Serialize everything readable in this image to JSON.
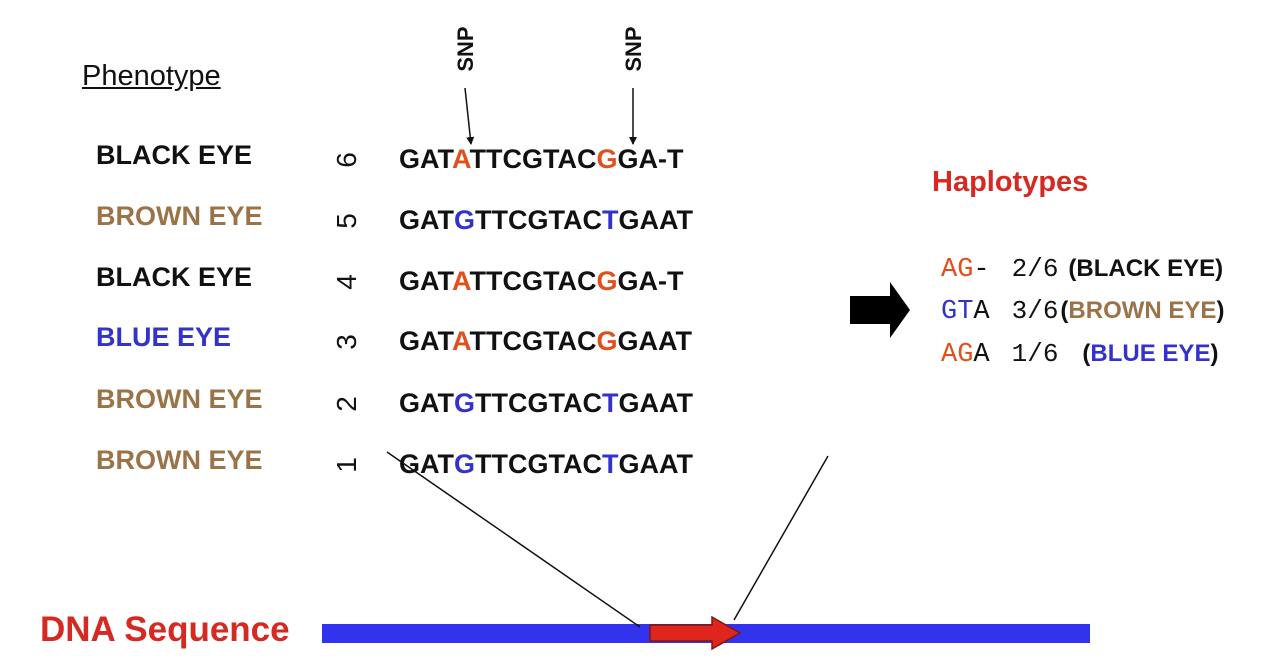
{
  "colors": {
    "black": "#111111",
    "brown": "#9b7348",
    "blue": "#3333cc",
    "orange": "#e0501e",
    "red": "#d42a22",
    "bar_blue": "#3333ee"
  },
  "phenotype": {
    "title": "Phenotype",
    "rows": [
      {
        "label": "BLACK EYE",
        "color": "#111111",
        "number": "6",
        "seq": [
          "GAT",
          "A",
          "TTCGTAC",
          "G",
          "GA-T"
        ],
        "snp1_color": "#e0501e",
        "snp2_color": "#e0501e"
      },
      {
        "label": "BROWN EYE",
        "color": "#9b7348",
        "number": "5",
        "seq": [
          "GAT",
          "G",
          "TTCGTAC",
          "T",
          "GAAT"
        ],
        "snp1_color": "#3333cc",
        "snp2_color": "#3333cc"
      },
      {
        "label": "BLACK EYE",
        "color": "#111111",
        "number": "4",
        "seq": [
          "GAT",
          "A",
          "TTCGTAC",
          "G",
          "GA-T"
        ],
        "snp1_color": "#e0501e",
        "snp2_color": "#e0501e"
      },
      {
        "label": "BLUE EYE",
        "color": "#3333cc",
        "number": "3",
        "seq": [
          "GAT",
          "A",
          "TTCGTAC",
          "G",
          "GAAT"
        ],
        "snp1_color": "#e0501e",
        "snp2_color": "#e0501e"
      },
      {
        "label": "BROWN EYE",
        "color": "#9b7348",
        "number": "2",
        "seq": [
          "GAT",
          "G",
          "TTCGTAC",
          "T",
          "GAAT"
        ],
        "snp1_color": "#3333cc",
        "snp2_color": "#3333cc"
      },
      {
        "label": "BROWN EYE",
        "color": "#9b7348",
        "number": "1",
        "seq": [
          "GAT",
          "G",
          "TTCGTAC",
          "T",
          "GAAT"
        ],
        "snp1_color": "#3333cc",
        "snp2_color": "#3333cc"
      }
    ]
  },
  "snp_labels": [
    "SNP",
    "SNP"
  ],
  "haplotypes": {
    "title": "Haplotypes",
    "rows": [
      {
        "code": [
          "A",
          "G",
          "-"
        ],
        "code_colors": [
          "#e0501e",
          "#e0501e",
          "#111111"
        ],
        "fraction": "2/6",
        "phenotype": "(BLACK EYE)",
        "phenotype_colors": [
          "#111111"
        ]
      },
      {
        "code": [
          "G",
          "T",
          "A"
        ],
        "code_colors": [
          "#3333cc",
          "#3333cc",
          "#111111"
        ],
        "fraction": "3/6",
        "phenotype": "(BROWN EYE)",
        "phenotype_colors": [
          "#9b7348"
        ]
      },
      {
        "code": [
          "A",
          "G",
          "A"
        ],
        "code_colors": [
          "#e0501e",
          "#e0501e",
          "#111111"
        ],
        "fraction": "1/6",
        "phenotype": "(BLUE EYE)",
        "phenotype_colors": [
          "#3333cc"
        ]
      }
    ]
  },
  "dna": {
    "label": "DNA Sequence"
  }
}
